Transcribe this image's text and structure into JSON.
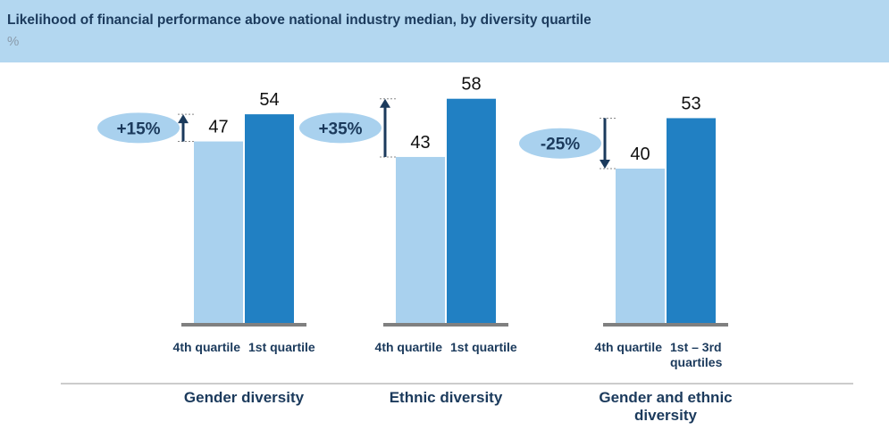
{
  "chart_data": {
    "type": "bar",
    "title": "Likelihood of financial performance above national industry median, by diversity quartile",
    "subtitle": "%",
    "colors": [
      "#a9d1ee",
      "#2180c3"
    ],
    "groups": [
      {
        "name": "Gender diversity",
        "categories": [
          "4th quartile",
          "1st quartile"
        ],
        "values": [
          47,
          54
        ],
        "annotation": "+15%",
        "direction": "up"
      },
      {
        "name": "Ethnic diversity",
        "categories": [
          "4th quartile",
          "1st quartile"
        ],
        "values": [
          43,
          58
        ],
        "annotation": "+35%",
        "direction": "up"
      },
      {
        "name": "Gender and ethnic diversity",
        "categories": [
          "4th quartile",
          "1st – 3rd quartiles"
        ],
        "values": [
          40,
          53
        ],
        "annotation": "-25%",
        "direction": "down"
      }
    ]
  }
}
